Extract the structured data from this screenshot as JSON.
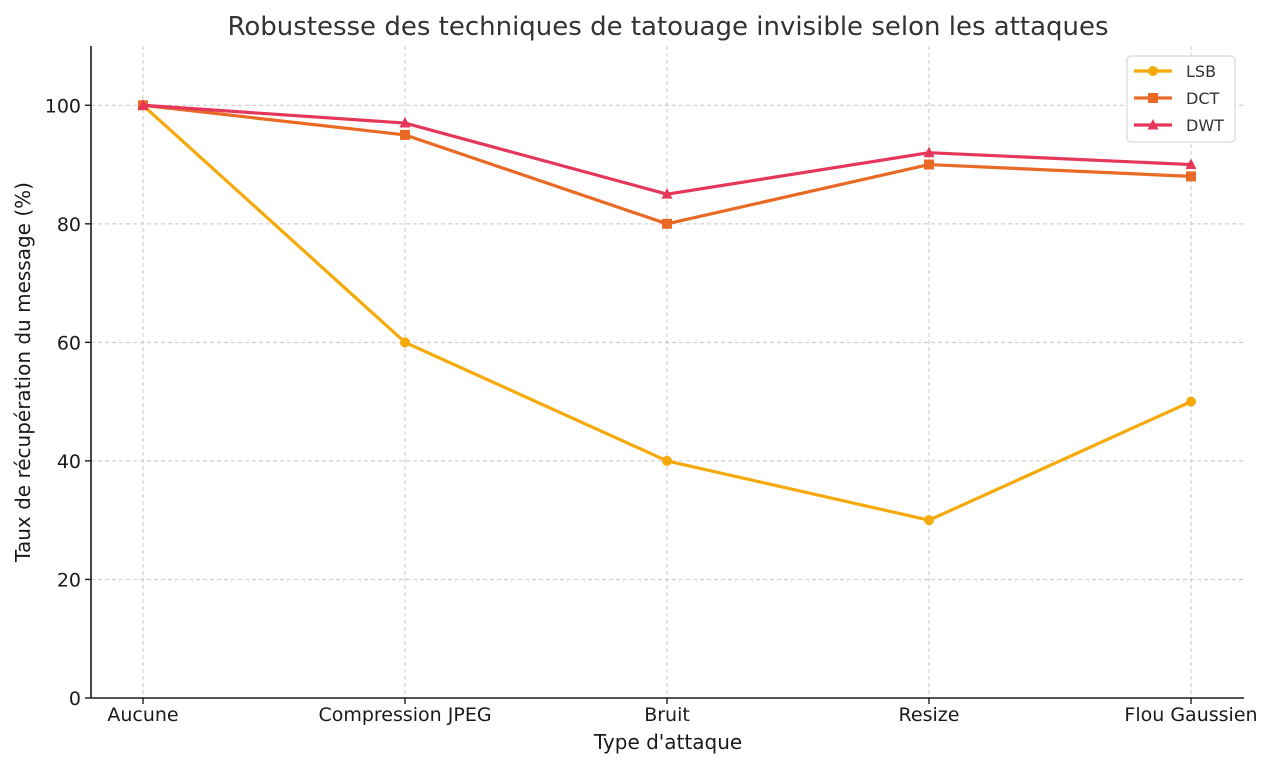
{
  "chart_data": {
    "type": "line",
    "title": "Robustesse des techniques de tatouage invisible selon les attaques",
    "xlabel": "Type d'attaque",
    "ylabel": "Taux de récupération du message (%)",
    "categories": [
      "Aucune",
      "Compression JPEG",
      "Bruit",
      "Resize",
      "Flou Gaussien"
    ],
    "ylim": [
      0,
      110
    ],
    "yticks": [
      0,
      20,
      40,
      60,
      80,
      100
    ],
    "grid": true,
    "legend_position": "top-right",
    "series": [
      {
        "name": "LSB",
        "values": [
          100,
          60,
          40,
          30,
          50
        ],
        "color": "#f5aa0a",
        "marker": "circle"
      },
      {
        "name": "DCT",
        "values": [
          100,
          95,
          80,
          90,
          88
        ],
        "color": "#e86a25",
        "marker": "square"
      },
      {
        "name": "DWT",
        "values": [
          100,
          97,
          85,
          92,
          90
        ],
        "color": "#e4375a",
        "marker": "triangle"
      }
    ]
  }
}
